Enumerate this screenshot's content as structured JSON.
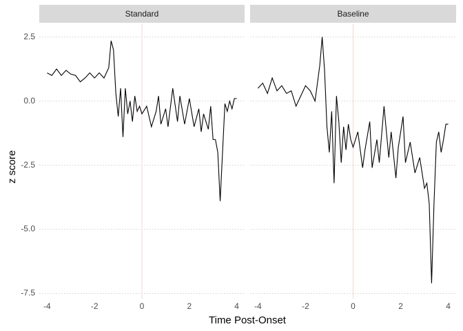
{
  "chart_data": [
    {
      "type": "line",
      "title": "Standard",
      "ylabel": "z score",
      "xlabel": "Time Post-Onset",
      "color": "#000000",
      "x": [
        -4,
        -3.8,
        -3.6,
        -3.4,
        -3.2,
        -3,
        -2.8,
        -2.6,
        -2.4,
        -2.2,
        -2,
        -1.8,
        -1.6,
        -1.4,
        -1.3,
        -1.2,
        -1.1,
        -1,
        -0.9,
        -0.8,
        -0.7,
        -0.6,
        -0.5,
        -0.4,
        -0.3,
        -0.2,
        -0.1,
        0,
        0.2,
        0.4,
        0.6,
        0.7,
        0.8,
        1,
        1.1,
        1.3,
        1.5,
        1.6,
        1.8,
        2,
        2.2,
        2.4,
        2.5,
        2.6,
        2.8,
        2.9,
        3,
        3.1,
        3.2,
        3.3,
        3.4,
        3.5,
        3.6,
        3.7,
        3.8,
        3.9,
        4
      ],
      "values": [
        1.1,
        1,
        1.25,
        1,
        1.2,
        1.05,
        1,
        0.75,
        0.9,
        1.1,
        0.9,
        1.1,
        0.9,
        1.3,
        2.35,
        2,
        0.3,
        -0.6,
        0.5,
        -1.4,
        0.5,
        -0.5,
        0,
        -0.8,
        0.2,
        -0.4,
        -0.2,
        -0.5,
        -0.2,
        -1,
        -0.4,
        0.2,
        -0.9,
        -0.3,
        -1,
        0.5,
        -0.8,
        0.2,
        -0.9,
        0.1,
        -1,
        -0.3,
        -1.2,
        -0.5,
        -1.1,
        -0.2,
        -1.5,
        -1.5,
        -2,
        -3.9,
        -2,
        -0.1,
        -0.4,
        0,
        -0.3,
        0.1,
        0.1
      ],
      "xlim": [
        -4.33,
        4.33
      ],
      "ylim": [
        -7.7,
        3.0
      ],
      "xticks": [
        -4,
        -2,
        0,
        2,
        4
      ],
      "yticks": [
        -7.5,
        {
          "value": -5,
          "label": "-5.0"
        },
        -2.5,
        {
          "value": 0,
          "label": "0.0"
        },
        2.5
      ],
      "grid": true,
      "vline": 0,
      "vline_color": "#f6d5d5"
    },
    {
      "type": "line",
      "title": "Baseline",
      "color": "#000000",
      "x": [
        -4,
        -3.8,
        -3.6,
        -3.4,
        -3.2,
        -3,
        -2.8,
        -2.6,
        -2.4,
        -2.2,
        -2,
        -1.8,
        -1.6,
        -1.4,
        -1.3,
        -1.2,
        -1.1,
        -1,
        -0.9,
        -0.8,
        -0.7,
        -0.6,
        -0.5,
        -0.4,
        -0.3,
        -0.2,
        -0.1,
        0,
        0.2,
        0.4,
        0.5,
        0.7,
        0.8,
        1,
        1.1,
        1.3,
        1.5,
        1.6,
        1.8,
        1.9,
        2.1,
        2.2,
        2.4,
        2.6,
        2.8,
        3,
        3.1,
        3.2,
        3.3,
        3.4,
        3.5,
        3.6,
        3.7,
        3.8,
        3.9,
        4
      ],
      "values": [
        0.5,
        0.7,
        0.3,
        0.9,
        0.4,
        0.6,
        0.3,
        0.4,
        -0.2,
        0.2,
        0.6,
        0.4,
        0,
        1.4,
        2.5,
        1.2,
        -1,
        -2,
        -0.4,
        -3.2,
        0.2,
        -0.8,
        -2.4,
        -1,
        -1.9,
        -0.9,
        -1.5,
        -1.8,
        -1.2,
        -2.6,
        -1.9,
        -0.8,
        -2.6,
        -1.5,
        -2.4,
        -0.2,
        -2.2,
        -1.2,
        -3,
        -1.8,
        -0.6,
        -2.4,
        -1.6,
        -2.8,
        -2.2,
        -3.4,
        -3.2,
        -4,
        -7.1,
        -4,
        -1.6,
        -1.2,
        -2,
        -1.5,
        -0.9,
        -0.9
      ],
      "xlim": [
        -4.33,
        4.33
      ],
      "ylim": [
        -7.7,
        3.0
      ],
      "xticks": [
        -4,
        -2,
        0,
        2,
        4
      ],
      "grid": true,
      "vline": 0,
      "vline_color": "#f6d5d5"
    }
  ]
}
